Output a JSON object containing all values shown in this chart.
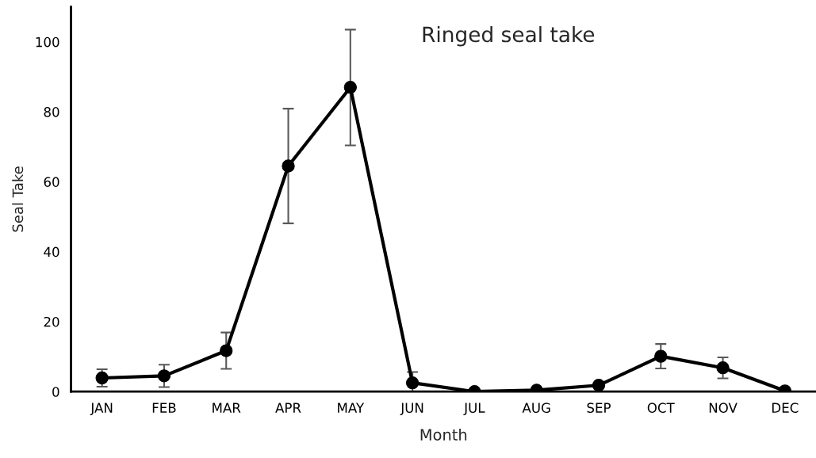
{
  "chart_data": {
    "type": "line",
    "title": "Ringed seal take",
    "xlabel": "Month",
    "ylabel": "Seal Take",
    "categories": [
      "JAN",
      "FEB",
      "MAR",
      "APR",
      "MAY",
      "JUN",
      "JUL",
      "AUG",
      "SEP",
      "OCT",
      "NOV",
      "DEC"
    ],
    "series": [
      {
        "color": "#000000",
        "values": [
          3.9,
          4.5,
          11.7,
          64.5,
          87.0,
          2.5,
          0,
          0.4,
          1.8,
          10.1,
          6.8,
          0.2
        ],
        "errors": [
          2.5,
          3.2,
          5.2,
          16.4,
          [
            70.4,
            103.5
          ],
          3.1,
          null,
          null,
          null,
          3.5,
          3.0,
          null
        ]
      }
    ],
    "ylim": [
      0,
      110
    ],
    "yticks": [
      0,
      20,
      40,
      60,
      80,
      100
    ],
    "grid": false,
    "legend": false,
    "marker": "circle",
    "line_style": "solid"
  }
}
